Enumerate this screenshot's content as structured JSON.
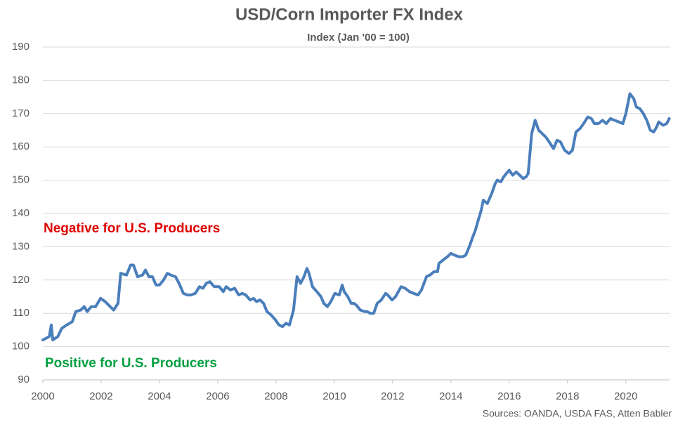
{
  "chart_data": {
    "type": "line",
    "title": "USD/Corn Importer FX Index",
    "subtitle": "Index (Jan '00 = 100)",
    "annotations": [
      {
        "text": "Negative for U.S. Producers",
        "color": "#e00000"
      },
      {
        "text": "Positive for U.S. Producers",
        "color": "#00a040"
      }
    ],
    "source": "Sources: OANDA, USDA FAS, Atten Babler",
    "color": "#4a7ebb",
    "grid": true,
    "xlim": [
      2000,
      2021.5
    ],
    "xticks": [
      2000,
      2002,
      2004,
      2006,
      2008,
      2010,
      2012,
      2014,
      2016,
      2018,
      2020
    ],
    "ylim": [
      90,
      190
    ],
    "yticks": [
      90,
      100,
      110,
      120,
      130,
      140,
      150,
      160,
      170,
      180,
      190
    ],
    "x": [
      2000.0,
      2000.22,
      2000.29,
      2000.34,
      2000.51,
      2000.65,
      2000.82,
      2001.01,
      2001.13,
      2001.3,
      2001.42,
      2001.52,
      2001.66,
      2001.81,
      2001.98,
      2002.14,
      2002.31,
      2002.43,
      2002.58,
      2002.67,
      2002.87,
      2003.01,
      2003.11,
      2003.25,
      2003.42,
      2003.52,
      2003.64,
      2003.76,
      2003.88,
      2004.0,
      2004.14,
      2004.27,
      2004.39,
      2004.55,
      2004.67,
      2004.82,
      2004.96,
      2005.08,
      2005.23,
      2005.37,
      2005.49,
      2005.61,
      2005.73,
      2005.88,
      2006.05,
      2006.19,
      2006.29,
      2006.43,
      2006.58,
      2006.72,
      2006.84,
      2006.96,
      2007.11,
      2007.23,
      2007.33,
      2007.45,
      2007.57,
      2007.69,
      2007.83,
      2007.98,
      2008.1,
      2008.22,
      2008.34,
      2008.46,
      2008.6,
      2008.72,
      2008.84,
      2008.96,
      2009.06,
      2009.13,
      2009.25,
      2009.4,
      2009.54,
      2009.64,
      2009.76,
      2009.88,
      2010.02,
      2010.17,
      2010.27,
      2010.34,
      2010.46,
      2010.58,
      2010.67,
      2010.75,
      2010.89,
      2011.04,
      2011.13,
      2011.23,
      2011.35,
      2011.47,
      2011.61,
      2011.76,
      2011.83,
      2011.98,
      2012.1,
      2012.29,
      2012.43,
      2012.58,
      2012.72,
      2012.87,
      2012.99,
      2013.16,
      2013.28,
      2013.42,
      2013.54,
      2013.59,
      2013.73,
      2013.88,
      2014.0,
      2014.12,
      2014.27,
      2014.41,
      2014.51,
      2014.63,
      2014.75,
      2014.84,
      2014.92,
      2015.04,
      2015.11,
      2015.25,
      2015.4,
      2015.52,
      2015.59,
      2015.71,
      2015.81,
      2015.9,
      2016.0,
      2016.12,
      2016.24,
      2016.36,
      2016.48,
      2016.58,
      2016.65,
      2016.77,
      2016.89,
      2017.01,
      2017.13,
      2017.25,
      2017.37,
      2017.52,
      2017.64,
      2017.76,
      2017.9,
      2018.05,
      2018.17,
      2018.29,
      2018.43,
      2018.55,
      2018.7,
      2018.82,
      2018.92,
      2019.06,
      2019.2,
      2019.33,
      2019.47,
      2019.61,
      2019.76,
      2019.9,
      2020.0,
      2020.14,
      2020.27,
      2020.36,
      2020.48,
      2020.6,
      2020.72,
      2020.84,
      2020.96,
      2021.06,
      2021.13,
      2021.28,
      2021.4,
      2021.49
    ],
    "values": [
      102,
      103,
      106.5,
      102,
      103,
      105.5,
      106.5,
      107.5,
      110.5,
      111,
      112,
      110.5,
      112,
      112,
      114.5,
      113.5,
      112,
      111,
      113,
      122,
      121.5,
      124.5,
      124.5,
      121,
      121.5,
      123,
      121,
      121,
      118.5,
      118.5,
      120,
      122,
      121.5,
      121,
      119,
      116,
      115.5,
      115.5,
      116,
      118,
      117.5,
      119,
      119.5,
      118,
      118,
      116.5,
      118,
      117,
      117.5,
      115.5,
      116,
      115.5,
      114,
      114.5,
      113.5,
      114,
      113,
      110.5,
      109.5,
      108,
      106.5,
      106,
      107,
      106.5,
      111,
      121,
      119,
      121,
      123.5,
      122,
      118,
      116.5,
      115,
      113,
      112,
      113.5,
      116,
      115.5,
      118.5,
      116.5,
      115,
      113,
      113,
      112.5,
      111,
      110.5,
      110.5,
      110,
      110,
      113,
      114,
      116,
      115.5,
      114,
      115,
      118,
      117.5,
      116.5,
      116,
      115.5,
      117,
      121,
      121.5,
      122.5,
      122.5,
      125,
      126,
      127,
      128,
      127.5,
      127,
      127,
      127.5,
      130,
      133,
      135,
      137.5,
      141,
      144,
      143,
      146,
      149,
      150,
      149.5,
      151,
      152,
      153,
      151.5,
      152.5,
      151.5,
      150.5,
      151,
      152,
      164,
      168,
      165,
      164,
      163,
      161.5,
      159.5,
      162,
      161.5,
      159,
      158,
      159,
      164.5,
      165.5,
      167,
      169,
      168.5,
      167,
      167,
      168,
      167,
      168.5,
      168,
      167.5,
      167,
      170,
      176,
      174.5,
      172,
      171.5,
      170,
      168,
      165,
      164.5,
      166,
      167.5,
      166.5,
      167,
      168.5
    ]
  }
}
